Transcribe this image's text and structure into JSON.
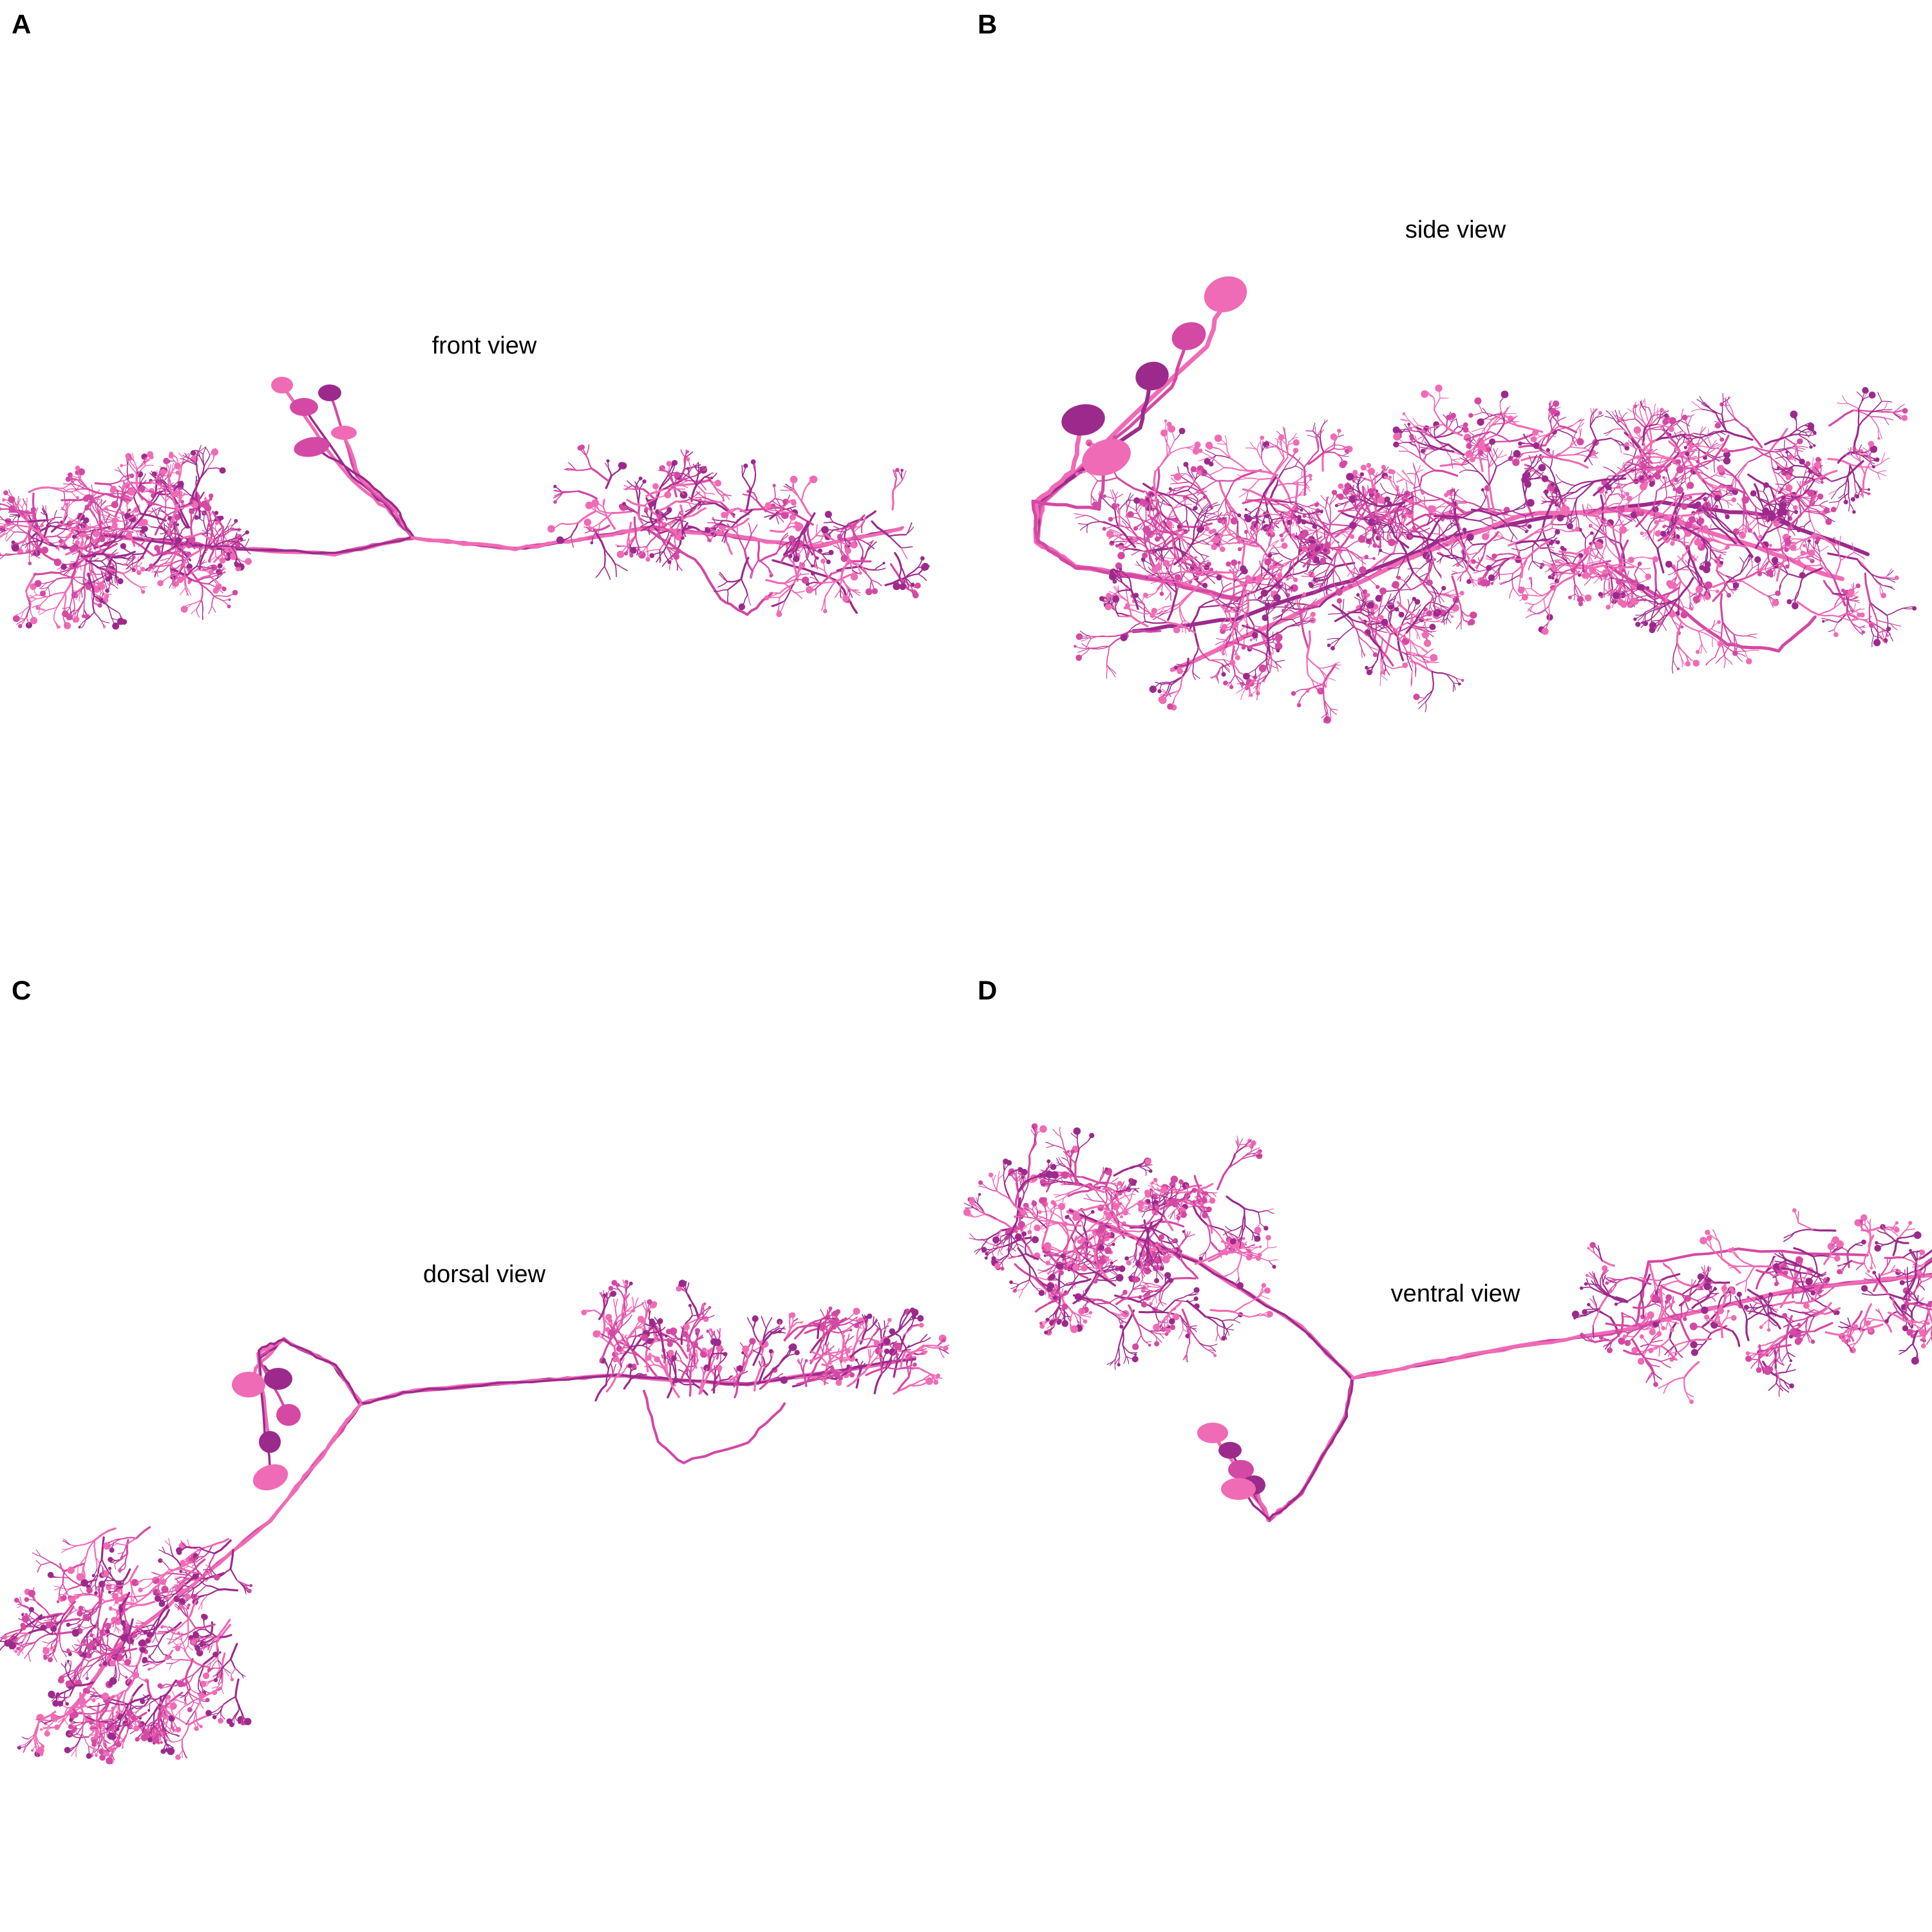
{
  "colors": {
    "neuron_pink": "#f06bb5",
    "neuron_magenta": "#d449a4",
    "neuron_purple": "#9c2a8c",
    "background": "#ffffff",
    "text": "#000000"
  },
  "panels": [
    {
      "letter": "A",
      "title": "front view"
    },
    {
      "letter": "B",
      "title": "side view"
    },
    {
      "letter": "C",
      "title": "dorsal view"
    },
    {
      "letter": "D",
      "title": "ventral view"
    }
  ]
}
